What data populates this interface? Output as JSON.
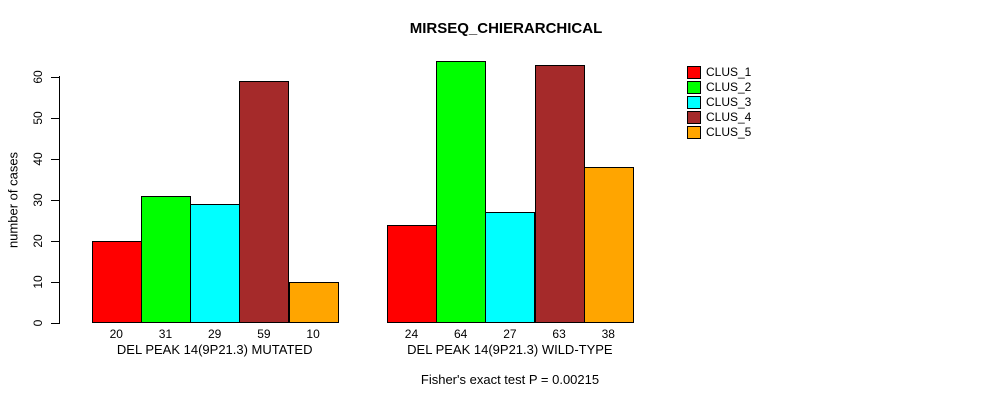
{
  "chart_data": {
    "type": "bar",
    "title": "MIRSEQ_CHIERARCHICAL",
    "ylabel": "number of cases",
    "xlabel": "",
    "ylim": [
      0,
      60
    ],
    "yticks": [
      0,
      10,
      20,
      30,
      40,
      50,
      60
    ],
    "grid": false,
    "legend_position": "right",
    "categories": [
      "DEL PEAK 14(9P21.3) MUTATED",
      "DEL PEAK 14(9P21.3) WILD-TYPE"
    ],
    "series": [
      {
        "name": "CLUS_1",
        "color": "#FF0000",
        "values": [
          20,
          24
        ]
      },
      {
        "name": "CLUS_2",
        "color": "#00FF00",
        "values": [
          31,
          64
        ]
      },
      {
        "name": "CLUS_3",
        "color": "#00FFFF",
        "values": [
          29,
          27
        ]
      },
      {
        "name": "CLUS_4",
        "color": "#A52A2A",
        "values": [
          59,
          63
        ]
      },
      {
        "name": "CLUS_5",
        "color": "#FFA500",
        "values": [
          10,
          38
        ]
      }
    ],
    "bar_value_labels_shown": true,
    "annotation": "Fisher's exact test P = 0.00215",
    "axis_color": "#000000",
    "background_color": "#FFFFFF"
  }
}
